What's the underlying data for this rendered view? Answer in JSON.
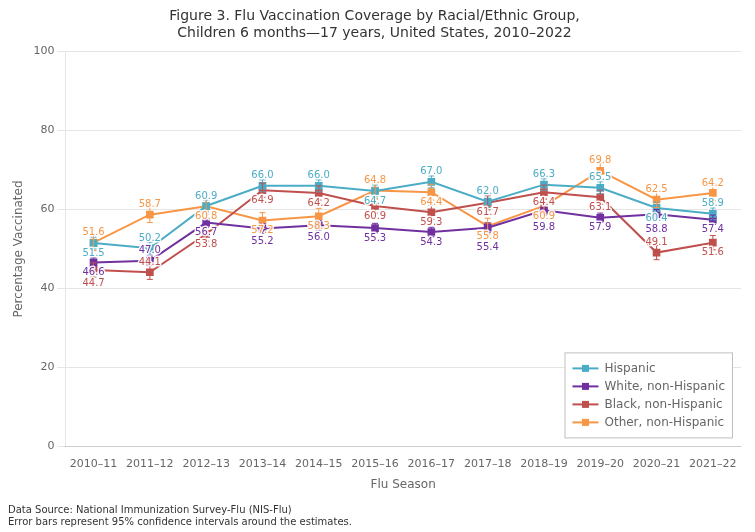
{
  "chart_data": {
    "type": "line",
    "title": "Figure 3. Flu Vaccination Coverage by Racial/Ethnic Group,\nChildren 6 months—17 years, United States, 2010–2022",
    "xlabel": "Flu Season",
    "ylabel": "Percentage Vaccinated",
    "categories": [
      "2010–11",
      "2011–12",
      "2012–13",
      "2013–14",
      "2014–15",
      "2015–16",
      "2016–17",
      "2017–18",
      "2018–19",
      "2019–20",
      "2020–21",
      "2021–22"
    ],
    "series": [
      {
        "name": "Hispanic",
        "color": "#4BACC6",
        "values": [
          51.5,
          50.2,
          60.9,
          66.0,
          66.0,
          64.7,
          67.0,
          62.0,
          66.3,
          65.5,
          60.4,
          58.9
        ],
        "value_labels": [
          "51.5",
          "50.2",
          "60.9",
          "66.0",
          "66.0",
          "64.7",
          "67.0",
          "62.0",
          "66.3",
          "65.5",
          "60.4",
          "58.9"
        ],
        "errors": [
          1.5,
          1.5,
          1.5,
          1.5,
          1.5,
          1.5,
          1.5,
          1.5,
          1.5,
          1.5,
          1.5,
          1.5
        ]
      },
      {
        "name": "White, non-Hispanic",
        "color": "#7030A0",
        "values": [
          46.6,
          47.0,
          56.7,
          55.2,
          56.0,
          55.3,
          54.3,
          55.4,
          59.8,
          57.9,
          58.8,
          57.4
        ],
        "value_labels": [
          "46.6",
          "47.0",
          "56.7",
          "55.2",
          "56.0",
          "55.3",
          "54.3",
          "55.4",
          "59.8",
          "57.9",
          "58.8",
          "57.4"
        ],
        "errors": [
          1.2,
          1.2,
          1.2,
          1.2,
          1.2,
          1.2,
          1.2,
          1.2,
          1.2,
          1.2,
          1.2,
          1.2
        ]
      },
      {
        "name": "Black, non-Hispanic",
        "color": "#C0504D",
        "values": [
          44.7,
          44.1,
          53.8,
          64.9,
          64.2,
          60.9,
          59.3,
          61.7,
          64.4,
          63.1,
          49.1,
          51.6
        ],
        "value_labels": [
          "44.7",
          "44.1",
          "53.8",
          "64.9",
          "64.2",
          "60.9",
          "59.3",
          "61.7",
          "64.4",
          "63.1",
          "49.1",
          "51.6"
        ],
        "errors": [
          1.8,
          1.8,
          1.8,
          1.8,
          1.8,
          1.8,
          1.8,
          1.8,
          1.8,
          1.8,
          1.8,
          1.8
        ]
      },
      {
        "name": "Other, non-Hispanic",
        "color": "#F79646",
        "values": [
          51.6,
          58.7,
          60.8,
          57.2,
          58.3,
          64.8,
          64.4,
          55.8,
          60.9,
          69.8,
          62.5,
          64.2
        ],
        "value_labels": [
          "51.6",
          "58.7",
          "60.8",
          "57.2",
          "58.3",
          "64.8",
          "64.4",
          "55.8",
          "60.9",
          "69.8",
          "62.5",
          "64.2"
        ],
        "errors": [
          2.0,
          2.0,
          2.0,
          2.0,
          2.0,
          2.0,
          2.0,
          2.0,
          2.0,
          2.0,
          2.0,
          2.0
        ]
      }
    ],
    "ylim": [
      0,
      100
    ],
    "yticks": [
      0,
      20,
      40,
      60,
      80,
      100
    ],
    "grid": "y",
    "legend": "lower right",
    "data_labels": true,
    "marker": "square",
    "annotations": [
      "Data Source: National Immunization Survey-Flu (NIS-Flu)",
      "Error bars represent 95% confidence intervals around the estimates."
    ]
  }
}
